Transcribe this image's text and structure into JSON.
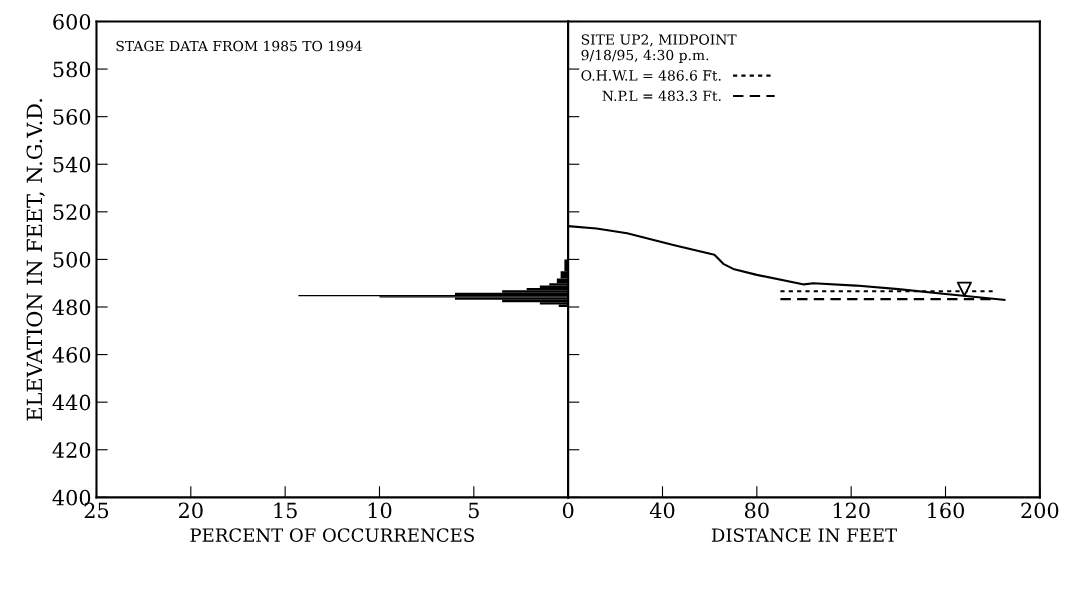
{
  "chart_data": [
    {
      "type": "histogram",
      "orientation": "horizontal",
      "xlabel": "PERCENT OF OCCURRENCES",
      "ylabel": "ELEVATION IN FEET, N.G.V.D.",
      "annotations": [
        "STAGE DATA FROM 1985 TO 1994"
      ],
      "bins": [
        480,
        481,
        482,
        483,
        484,
        484.5,
        485,
        486,
        487,
        488,
        489,
        490,
        492,
        495,
        500
      ],
      "values": [
        0.5,
        1.5,
        3.5,
        6,
        10,
        14.3,
        6,
        3.5,
        2.2,
        1.5,
        1,
        0.6,
        0.4,
        0.2
      ],
      "color": "#000000",
      "xlim": [
        25,
        0
      ],
      "xticks": [
        25,
        20,
        15,
        10,
        5,
        0
      ],
      "ylim": [
        400,
        600
      ],
      "yticks": [
        400,
        420,
        440,
        460,
        480,
        500,
        520,
        540,
        560,
        580,
        600
      ]
    },
    {
      "type": "line",
      "xlabel": "DISTANCE IN FEET",
      "tick_labels": "x",
      "legend": "top left",
      "legend_title": "SITE UP2, MIDPOINT\n9/18/95, 4:30 p.m.",
      "series": [
        {
          "type": "line",
          "color": "#000000",
          "line_style": "solid",
          "x": [
            0,
            12,
            25,
            45,
            62,
            66,
            70,
            80,
            100,
            104,
            122,
            140,
            160,
            175,
            185
          ],
          "values": [
            514,
            513,
            511,
            506,
            502,
            498,
            496,
            493.5,
            489.5,
            490,
            489,
            487.5,
            485.5,
            484,
            483
          ]
        },
        {
          "type": "line",
          "name": "O.H.W.L = 486.6 Ft.",
          "color": "#000000",
          "line_style": "dotted",
          "x": [
            90,
            180
          ],
          "values": [
            486.6,
            486.6
          ]
        },
        {
          "type": "line",
          "name": "N.P.L = 483.3 Ft.",
          "color": "#000000",
          "line_style": "dashed",
          "x": [
            90,
            180
          ],
          "values": [
            483.3,
            483.3
          ]
        },
        {
          "type": "scatter",
          "marker": "triangle",
          "color": "#000000",
          "x": [
            168
          ],
          "values": [
            487.5
          ]
        }
      ],
      "xlim": [
        0,
        200
      ],
      "xticks": [
        {
          "value": 0,
          "label": null
        },
        40,
        80,
        120,
        160,
        200
      ],
      "ylim": [
        400,
        600
      ],
      "yticks": [
        400,
        420,
        440,
        460,
        480,
        500,
        520,
        540,
        560,
        580,
        600
      ]
    }
  ]
}
